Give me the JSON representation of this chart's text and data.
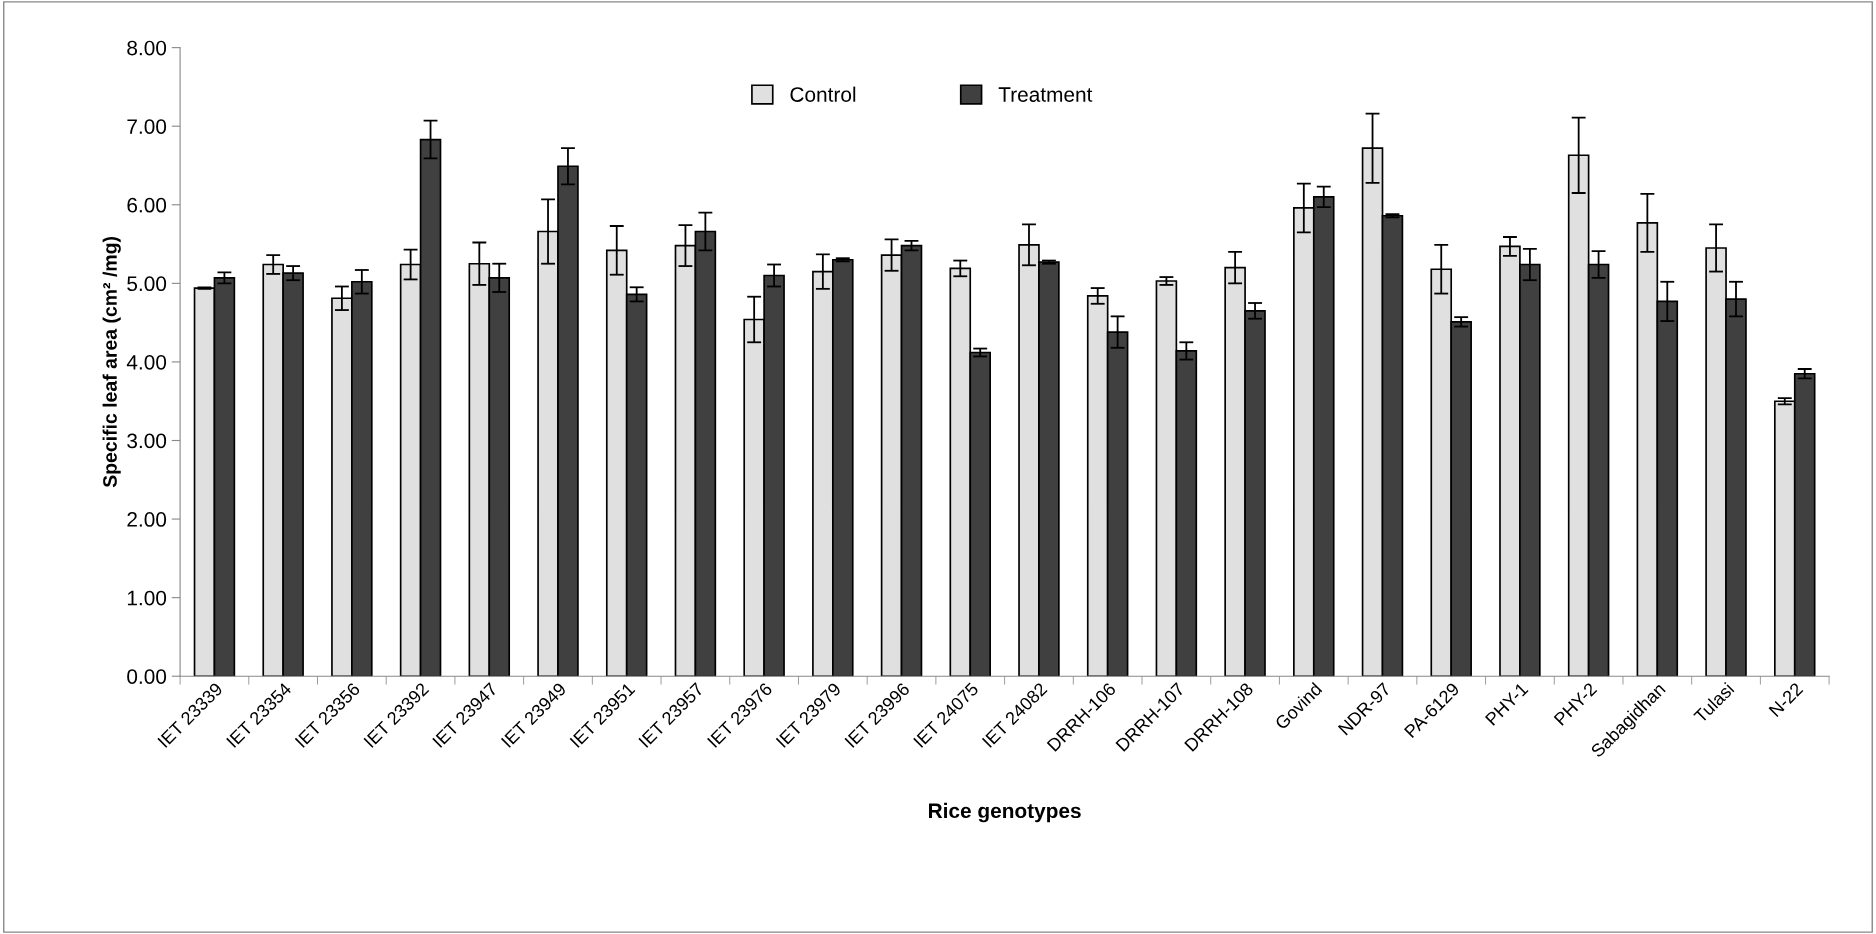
{
  "chart_data": {
    "type": "bar",
    "xlabel": "Rice genotypes",
    "ylabel": "Specific leaf area (cm² /mg)",
    "categories": [
      "IET 23339",
      "IET 23354",
      "IET 23356",
      "IET 23392",
      "IET 23947",
      "IET 23949",
      "IET 23951",
      "IET 23957",
      "IET 23976",
      "IET 23979",
      "IET 23996",
      "IET 24075",
      "IET 24082",
      "DRRH-106",
      "DRRH-107",
      "DRRH-108",
      "Govind",
      "NDR-97",
      "PA-6129",
      "PHY-1",
      "PHY-2",
      "Sabagidhan",
      "Tulasi",
      "N-22"
    ],
    "series": [
      {
        "name": "Control",
        "color": "#e0e0e0",
        "values": [
          4.94,
          5.24,
          4.81,
          5.24,
          5.25,
          5.66,
          5.42,
          5.48,
          4.54,
          5.15,
          5.36,
          5.19,
          5.49,
          4.84,
          5.03,
          5.2,
          5.96,
          6.72,
          5.18,
          5.47,
          6.63,
          5.77,
          5.45,
          3.5
        ],
        "errors": [
          0.01,
          0.12,
          0.15,
          0.19,
          0.27,
          0.41,
          0.31,
          0.26,
          0.29,
          0.22,
          0.2,
          0.1,
          0.26,
          0.1,
          0.05,
          0.2,
          0.31,
          0.44,
          0.31,
          0.12,
          0.48,
          0.37,
          0.3,
          0.04
        ]
      },
      {
        "name": "Treatment",
        "color": "#404040",
        "values": [
          5.07,
          5.13,
          5.02,
          6.83,
          5.07,
          6.49,
          4.86,
          5.66,
          5.1,
          5.3,
          5.48,
          4.12,
          5.27,
          4.38,
          4.14,
          4.65,
          6.1,
          5.86,
          4.51,
          5.24,
          5.24,
          4.77,
          4.8,
          3.85
        ],
        "errors": [
          0.07,
          0.09,
          0.15,
          0.24,
          0.18,
          0.23,
          0.09,
          0.24,
          0.14,
          0.02,
          0.06,
          0.05,
          0.02,
          0.2,
          0.11,
          0.1,
          0.13,
          0.02,
          0.06,
          0.2,
          0.17,
          0.25,
          0.22,
          0.06
        ]
      }
    ],
    "ylim": [
      0,
      8
    ],
    "yticks": [
      {
        "value": 0,
        "label": "0.00"
      },
      {
        "value": 1,
        "label": "1.00"
      },
      {
        "value": 2,
        "label": "2.00"
      },
      {
        "value": 3,
        "label": "3.00"
      },
      {
        "value": 4,
        "label": "4.00"
      },
      {
        "value": 5,
        "label": "5.00"
      },
      {
        "value": 6,
        "label": "6.00"
      },
      {
        "value": 7,
        "label": "7.00"
      },
      {
        "value": 8,
        "label": "8.00"
      }
    ],
    "grid": false,
    "legend": "top"
  }
}
